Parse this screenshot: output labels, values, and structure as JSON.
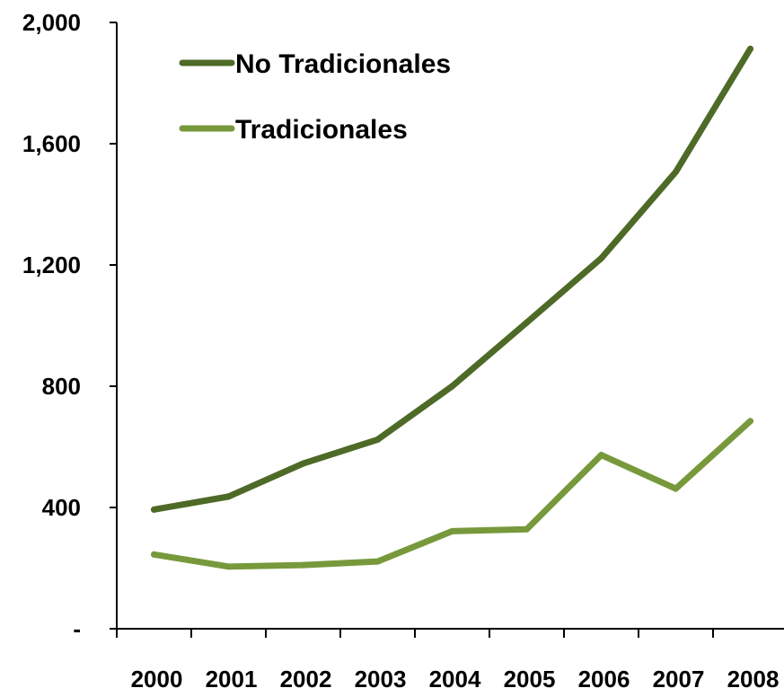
{
  "chart_data": {
    "type": "line",
    "categories": [
      "2000",
      "2001",
      "2002",
      "2003",
      "2004",
      "2005",
      "2006",
      "2007",
      "2008"
    ],
    "y_tick_labels": [
      "-",
      "400",
      "800",
      "1,200",
      "1,600",
      "2,000"
    ],
    "y_tick_values": [
      0,
      400,
      800,
      1200,
      1600,
      2000
    ],
    "ylim": [
      0,
      2000
    ],
    "grid": false,
    "legend_position": "top-left",
    "series": [
      {
        "name": "No Tradicionales",
        "color": "#4e6a27",
        "values": [
          393,
          436,
          545,
          624,
          800,
          1010,
          1222,
          1507,
          1913
        ]
      },
      {
        "name": "Tradicionales",
        "color": "#77993c",
        "values": [
          245,
          205,
          210,
          222,
          322,
          328,
          573,
          462,
          685
        ]
      }
    ]
  }
}
